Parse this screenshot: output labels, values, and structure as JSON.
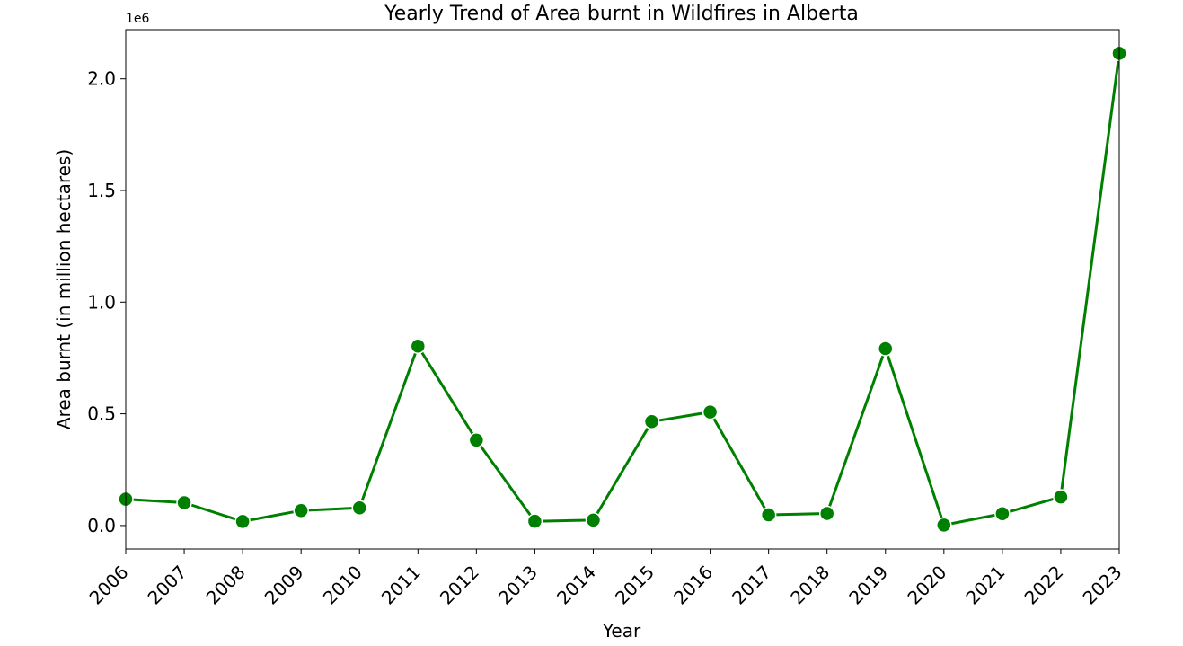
{
  "chart_data": {
    "type": "line",
    "title": "Yearly Trend of Area burnt in Wildfires in Alberta",
    "xlabel": "Year",
    "ylabel": "Area burnt (in million hectares)",
    "y_offset_label": "1e6",
    "x": [
      2006,
      2007,
      2008,
      2009,
      2010,
      2011,
      2012,
      2013,
      2014,
      2015,
      2016,
      2017,
      2018,
      2019,
      2020,
      2021,
      2022,
      2023
    ],
    "x_tick_labels": [
      "2006",
      "2007",
      "2008",
      "2009",
      "2010",
      "2011",
      "2012",
      "2013",
      "2014",
      "2015",
      "2016",
      "2017",
      "2018",
      "2019",
      "2020",
      "2021",
      "2022",
      "2023"
    ],
    "values": [
      0.118,
      0.102,
      0.018,
      0.067,
      0.079,
      0.803,
      0.382,
      0.019,
      0.024,
      0.465,
      0.508,
      0.048,
      0.054,
      0.792,
      0.002,
      0.053,
      0.128,
      2.114
    ],
    "y_ticks": [
      0.0,
      0.5,
      1.0,
      1.5,
      2.0
    ],
    "y_tick_labels": [
      "0.0",
      "0.5",
      "1.0",
      "1.5",
      "2.0"
    ],
    "xlim": [
      2006,
      2023
    ],
    "ylim": [
      -0.105,
      2.22
    ],
    "grid": false,
    "legend": "none",
    "line_color": "#008000",
    "marker": "circle",
    "marker_edge_color": "#ffffff"
  }
}
